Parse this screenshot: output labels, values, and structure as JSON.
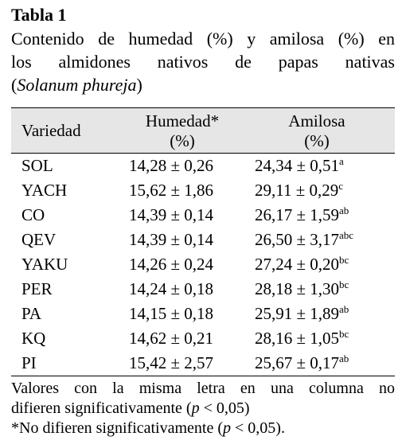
{
  "title": "Tabla 1",
  "caption": {
    "line1": "Contenido de humedad (%) y amilosa (%) en",
    "line2": "los almidones nativos de papas nativas",
    "line3_open": "(",
    "line3_italic": "Solanum phureja",
    "line3_close": ")"
  },
  "table": {
    "headers": {
      "variedad": "Variedad",
      "humedad_l1": "Humedad*",
      "humedad_l2": "(%)",
      "amilosa_l1": "Amilosa",
      "amilosa_l2": "(%)"
    },
    "rows": [
      {
        "variedad": "SOL",
        "humedad": "14,28 ± 0,26",
        "amilosa": "24,34 ± 0,51",
        "letra": "a"
      },
      {
        "variedad": "YACH",
        "humedad": "15,62 ± 1,86",
        "amilosa": "29,11 ± 0,29",
        "letra": "c"
      },
      {
        "variedad": "CO",
        "humedad": "14,39 ± 0,14",
        "amilosa": "26,17 ± 1,59",
        "letra": "ab"
      },
      {
        "variedad": "QEV",
        "humedad": "14,39 ± 0,14",
        "amilosa": "26,50 ± 3,17",
        "letra": "abc"
      },
      {
        "variedad": "YAKU",
        "humedad": "14,26 ± 0,24",
        "amilosa": "27,24 ± 0,20",
        "letra": "bc"
      },
      {
        "variedad": "PER",
        "humedad": "14,24 ± 0,18",
        "amilosa": "28,18 ± 1,30",
        "letra": "bc"
      },
      {
        "variedad": "PA",
        "humedad": "14,15 ± 0,18",
        "amilosa": "25,91 ± 1,89",
        "letra": "ab"
      },
      {
        "variedad": "KQ",
        "humedad": "14,62 ± 0,21",
        "amilosa": "28,16 ± 1,05",
        "letra": "bc"
      },
      {
        "variedad": "PI",
        "humedad": "15,42 ± 2,57",
        "amilosa": "25,67 ± 0,17",
        "letra": "ab"
      }
    ]
  },
  "notes": {
    "line1": "Valores con la misma letra en una columna no",
    "line2_pre": "difieren significativamente (",
    "line2_italic": "p",
    "line2_post": " < 0,05)",
    "line3_pre": "*No difieren significativamente (",
    "line3_italic": "p",
    "line3_post": " < 0,05)."
  }
}
